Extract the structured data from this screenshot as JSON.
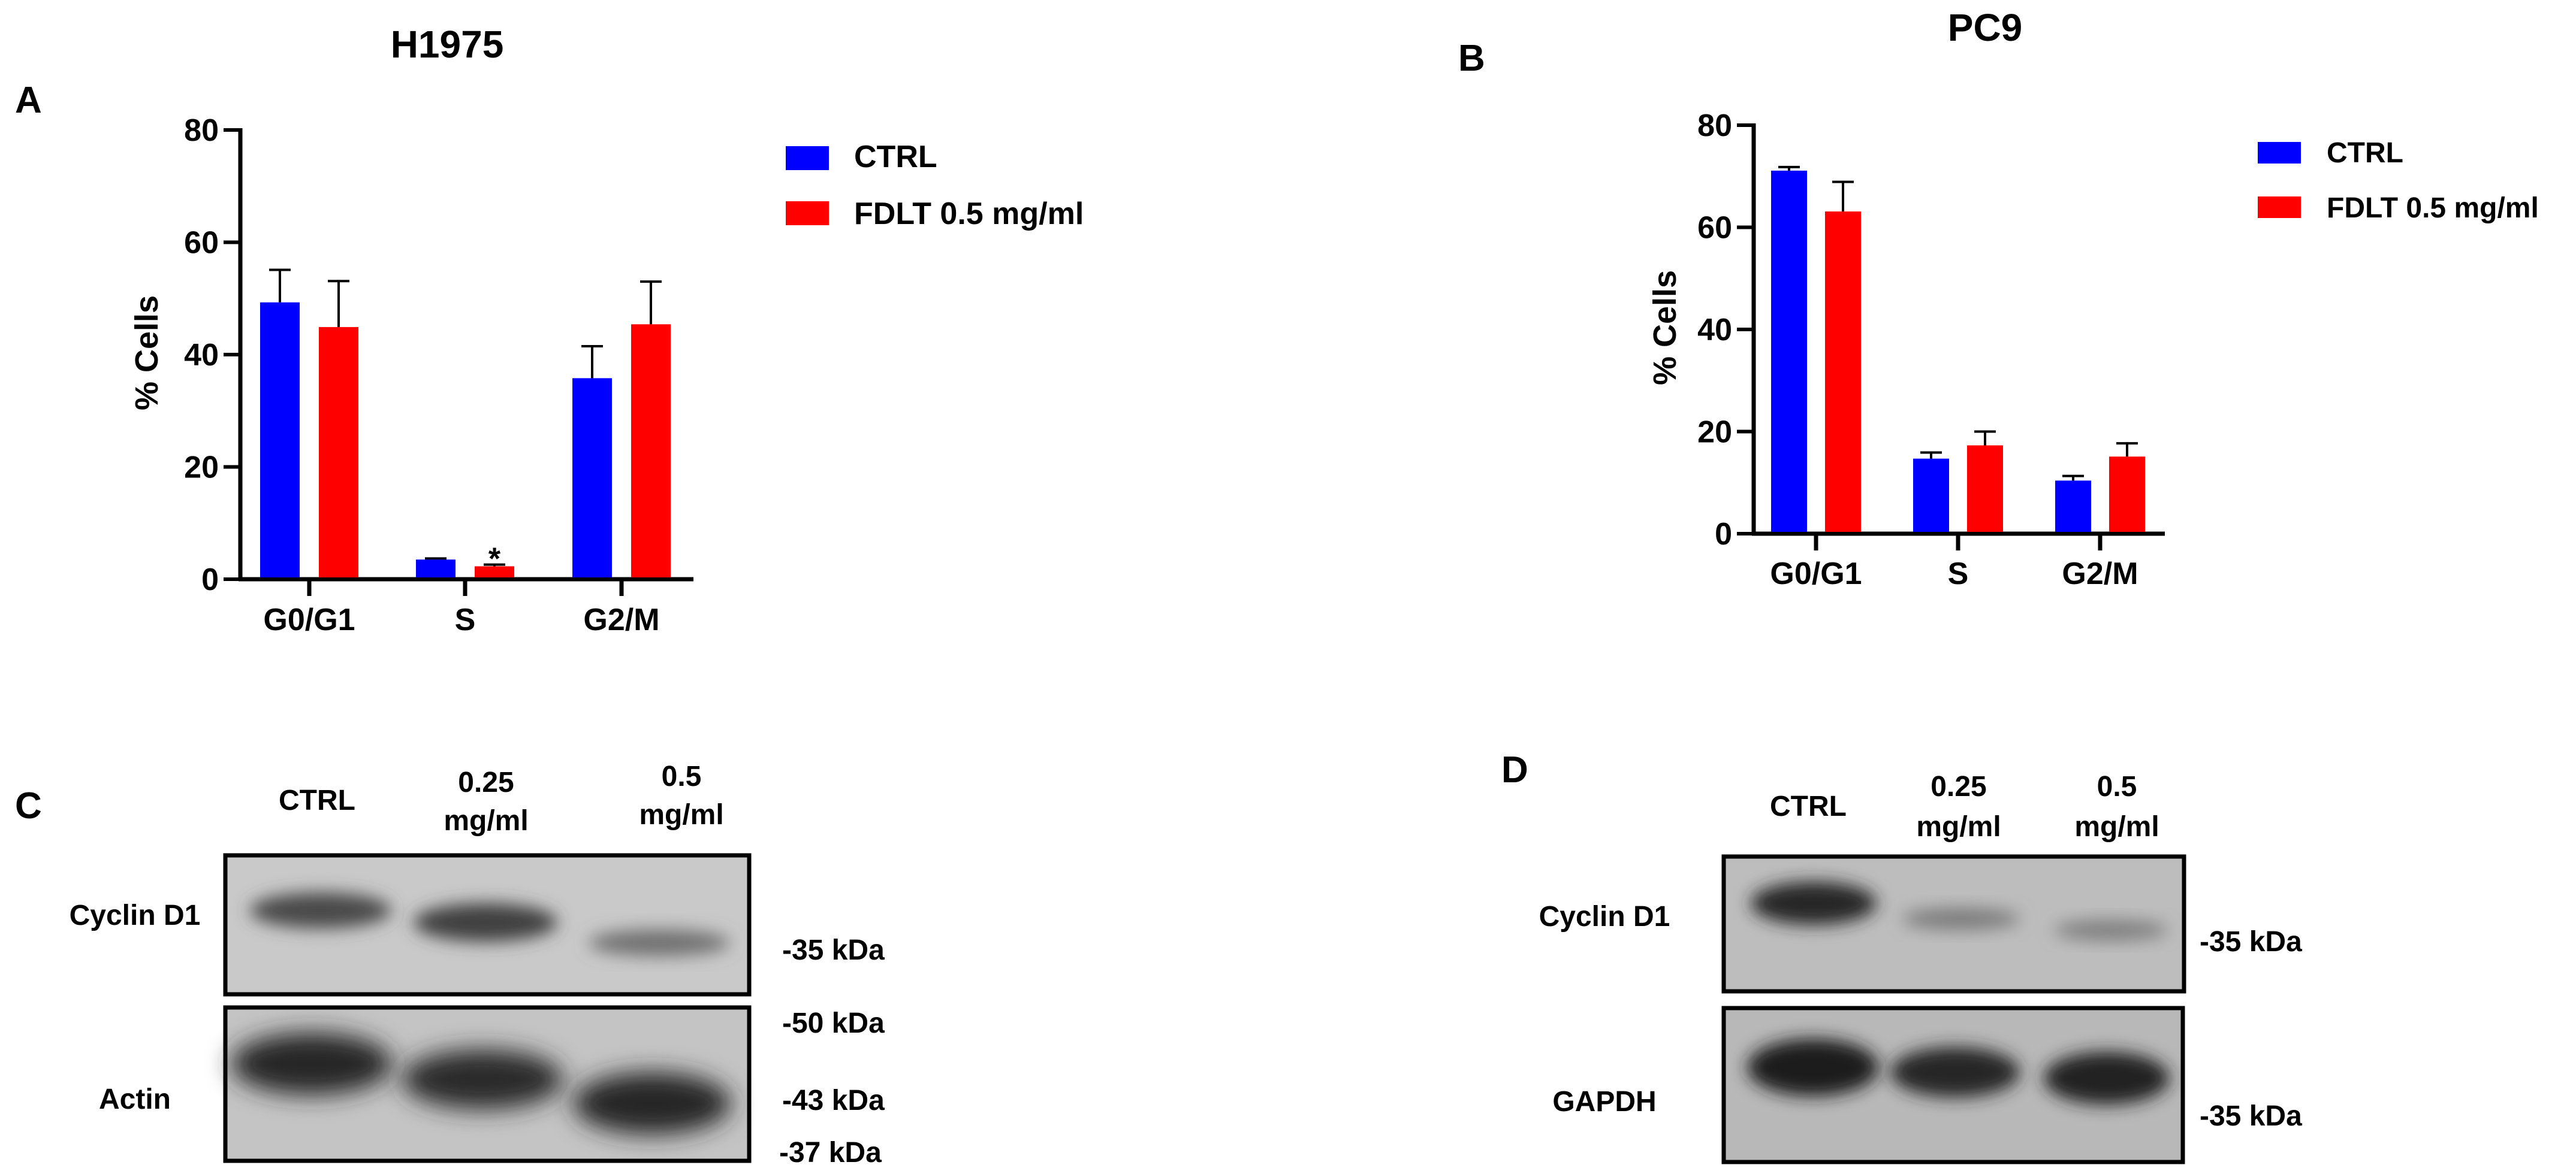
{
  "panels": {
    "A": "A",
    "B": "B",
    "C": "C",
    "D": "D"
  },
  "chart_data": [
    {
      "type": "bar",
      "panel": "A",
      "title": "H1975",
      "xlabel": "",
      "ylabel": "% Cells",
      "ylim": [
        0,
        80
      ],
      "yticks": [
        0,
        20,
        40,
        60,
        80
      ],
      "categories": [
        "G0/G1",
        "S",
        "G2/M"
      ],
      "series": [
        {
          "name": "CTRL",
          "color": "#0000ff",
          "values": [
            49.3,
            3.5,
            35.8
          ],
          "errors": [
            5.8,
            0.2,
            5.7
          ]
        },
        {
          "name": "FDLT 0.5 mg/ml",
          "color": "#ff0000",
          "values": [
            44.9,
            2.3,
            45.4
          ],
          "errors": [
            8.2,
            0.3,
            7.6
          ]
        }
      ],
      "annotations": [
        {
          "category": "S",
          "series": "FDLT 0.5 mg/ml",
          "text": "*"
        }
      ],
      "legend": "top-right",
      "grid": false
    },
    {
      "type": "bar",
      "panel": "B",
      "title": "PC9",
      "xlabel": "",
      "ylabel": "% Cells",
      "ylim": [
        0,
        80
      ],
      "yticks": [
        0,
        20,
        40,
        60,
        80
      ],
      "categories": [
        "G0/G1",
        "S",
        "G2/M"
      ],
      "series": [
        {
          "name": "CTRL",
          "color": "#0000ff",
          "values": [
            71.1,
            14.7,
            10.4
          ],
          "errors": [
            0.7,
            1.2,
            0.9
          ]
        },
        {
          "name": "FDLT 0.5 mg/ml",
          "color": "#ff0000",
          "values": [
            63.1,
            17.3,
            15.1
          ],
          "errors": [
            5.8,
            2.7,
            2.6
          ]
        }
      ],
      "annotations": [],
      "legend": "top-right",
      "grid": false
    }
  ],
  "blots": {
    "C": {
      "lanes": [
        {
          "line1": "CTRL",
          "line2": ""
        },
        {
          "line1": "0.25",
          "line2": "mg/ml"
        },
        {
          "line1": "0.5",
          "line2": "mg/ml"
        }
      ],
      "rows": [
        {
          "label": "Cyclin D1",
          "markers": [
            "-35 kDa"
          ]
        },
        {
          "label": "Actin",
          "markers": [
            "-50 kDa",
            "-43 kDa",
            "-37 kDa"
          ]
        }
      ]
    },
    "D": {
      "lanes": [
        {
          "line1": "CTRL",
          "line2": ""
        },
        {
          "line1": "0.25",
          "line2": "mg/ml"
        },
        {
          "line1": "0.5",
          "line2": "mg/ml"
        }
      ],
      "rows": [
        {
          "label": "Cyclin D1",
          "markers": [
            "-35 kDa"
          ]
        },
        {
          "label": "GAPDH",
          "markers": [
            "-35 kDa"
          ]
        }
      ]
    }
  }
}
